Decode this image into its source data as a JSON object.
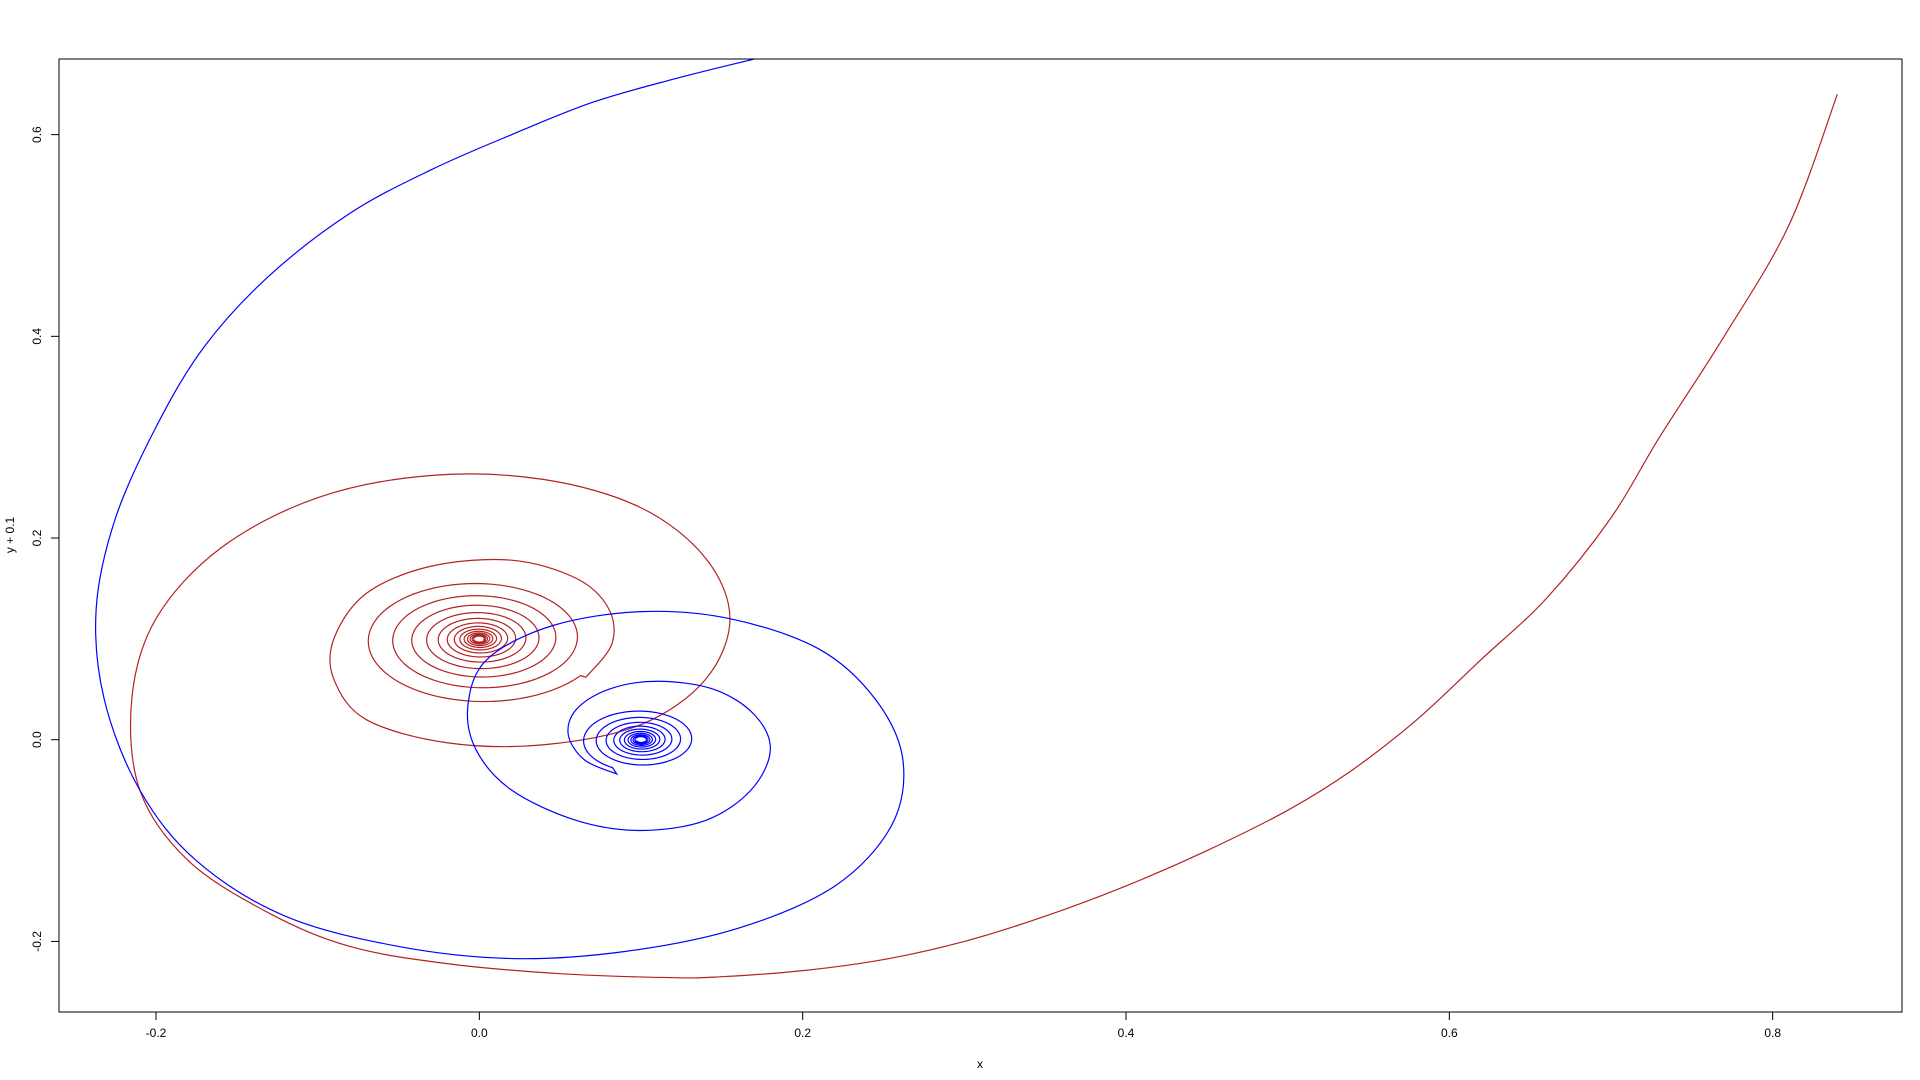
{
  "chart_data": {
    "type": "line",
    "title": "",
    "xlabel": "x",
    "ylabel": "y + 0.1",
    "xlim": [
      -0.26,
      0.88
    ],
    "ylim": [
      -0.27,
      0.675
    ],
    "grid": false,
    "legend": "none",
    "x_ticks": [
      -0.2,
      0.0,
      0.2,
      0.4,
      0.6,
      0.8
    ],
    "x_tick_labels": [
      "-0.2",
      "0.0",
      "0.2",
      "0.4",
      "0.6",
      "0.8"
    ],
    "y_ticks": [
      -0.2,
      0.0,
      0.2,
      0.4,
      0.6
    ],
    "y_tick_labels": [
      "-0.2",
      "0.0",
      "0.2",
      "0.4",
      "0.6"
    ],
    "series": [
      {
        "color": "#b22222",
        "start": [
          0.84,
          0.64
        ],
        "points": [
          [
            0.84,
            0.64
          ],
          [
            0.81,
            0.51
          ],
          [
            0.77,
            0.4
          ],
          [
            0.73,
            0.3
          ],
          [
            0.7,
            0.22
          ],
          [
            0.66,
            0.14
          ],
          [
            0.62,
            0.08
          ],
          [
            0.58,
            0.02
          ],
          [
            0.54,
            -0.03
          ],
          [
            0.5,
            -0.07
          ],
          [
            0.45,
            -0.11
          ],
          [
            0.4,
            -0.145
          ],
          [
            0.35,
            -0.175
          ],
          [
            0.3,
            -0.2
          ],
          [
            0.25,
            -0.218
          ],
          [
            0.2,
            -0.229
          ],
          [
            0.15,
            -0.235
          ],
          [
            0.12,
            -0.236
          ],
          [
            0.05,
            -0.232
          ],
          [
            -0.02,
            -0.222
          ],
          [
            -0.08,
            -0.205
          ],
          [
            -0.13,
            -0.172
          ],
          [
            -0.18,
            -0.12
          ],
          [
            -0.21,
            -0.05
          ],
          [
            -0.215,
            0.04
          ],
          [
            -0.2,
            0.12
          ],
          [
            -0.16,
            0.19
          ],
          [
            -0.1,
            0.24
          ],
          [
            -0.03,
            0.262
          ],
          [
            0.04,
            0.258
          ],
          [
            0.1,
            0.23
          ],
          [
            0.14,
            0.18
          ],
          [
            0.155,
            0.12
          ],
          [
            0.14,
            0.06
          ],
          [
            0.1,
            0.015
          ],
          [
            0.04,
            -0.005
          ],
          [
            -0.02,
            -0.003
          ],
          [
            -0.07,
            0.02
          ],
          [
            -0.09,
            0.06
          ],
          [
            -0.09,
            0.1
          ],
          [
            -0.07,
            0.145
          ],
          [
            -0.03,
            0.172
          ],
          [
            0.02,
            0.178
          ],
          [
            0.06,
            0.16
          ],
          [
            0.08,
            0.13
          ],
          [
            0.082,
            0.095
          ],
          [
            0.066,
            0.062
          ]
        ],
        "spiral_center": [
          0.0,
          0.1
        ],
        "decay": 0.78
      },
      {
        "color": "#0000ff",
        "start": [
          0.17,
          0.675
        ],
        "points": [
          [
            0.17,
            0.675
          ],
          [
            0.12,
            0.655
          ],
          [
            0.07,
            0.632
          ],
          [
            0.02,
            0.6
          ],
          [
            -0.03,
            0.565
          ],
          [
            -0.08,
            0.522
          ],
          [
            -0.13,
            0.46
          ],
          [
            -0.17,
            0.39
          ],
          [
            -0.2,
            0.31
          ],
          [
            -0.225,
            0.22
          ],
          [
            -0.237,
            0.13
          ],
          [
            -0.232,
            0.04
          ],
          [
            -0.21,
            -0.05
          ],
          [
            -0.175,
            -0.12
          ],
          [
            -0.12,
            -0.175
          ],
          [
            -0.05,
            -0.205
          ],
          [
            0.02,
            -0.217
          ],
          [
            0.09,
            -0.21
          ],
          [
            0.16,
            -0.187
          ],
          [
            0.22,
            -0.145
          ],
          [
            0.255,
            -0.085
          ],
          [
            0.262,
            -0.02
          ],
          [
            0.245,
            0.04
          ],
          [
            0.21,
            0.09
          ],
          [
            0.155,
            0.12
          ],
          [
            0.1,
            0.127
          ],
          [
            0.045,
            0.113
          ],
          [
            0.005,
            0.08
          ],
          [
            -0.007,
            0.035
          ],
          [
            -0.002,
            -0.01
          ],
          [
            0.02,
            -0.05
          ],
          [
            0.06,
            -0.08
          ],
          [
            0.1,
            -0.09
          ],
          [
            0.14,
            -0.08
          ],
          [
            0.168,
            -0.05
          ],
          [
            0.18,
            -0.01
          ],
          [
            0.17,
            0.025
          ],
          [
            0.145,
            0.05
          ],
          [
            0.11,
            0.058
          ],
          [
            0.08,
            0.05
          ],
          [
            0.06,
            0.03
          ],
          [
            0.055,
            0.005
          ],
          [
            0.065,
            -0.02
          ],
          [
            0.085,
            -0.034
          ]
        ],
        "spiral_center": [
          0.1,
          0.0
        ],
        "decay": 0.78
      }
    ]
  }
}
